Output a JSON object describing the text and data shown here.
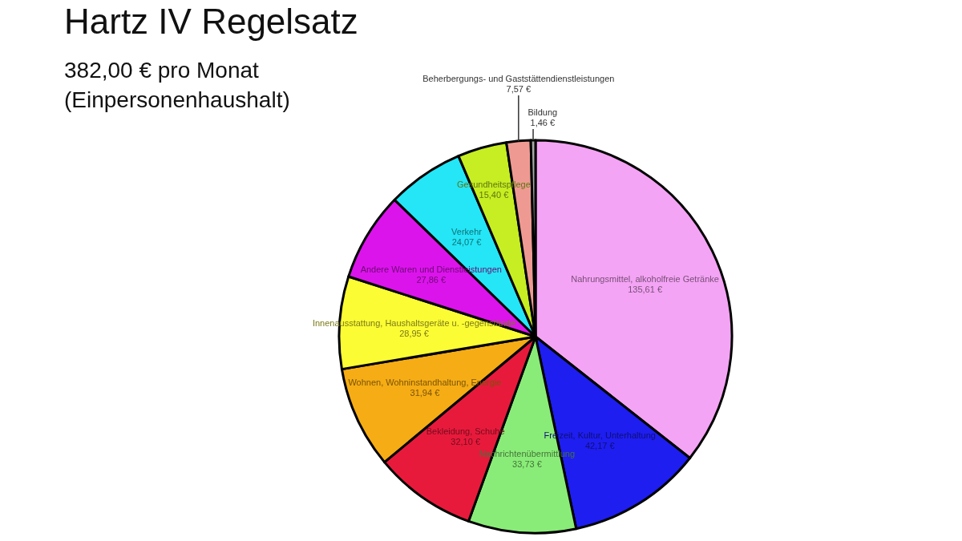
{
  "chart_data": {
    "type": "pie",
    "title": "Hartz IV Regelsatz",
    "subtitle": "382,00 € pro Monat\n(Einpersonenhaushalt)",
    "categories": [
      "Nahrungsmittel, alkoholfreie Getränke",
      "Freizeit, Kultur, Unterhaltung",
      "Nachrichtenübermittlung",
      "Bekleidung, Schuhe",
      "Wohnen, Wohninstandhaltung, Energie",
      "Innenausstattung, Haushaltsgeräte u. -gegenstände",
      "Andere Waren und Dienstleistungen",
      "Verkehr",
      "Gesundheitspflege",
      "Beherbergungs- und Gaststättendienstleistungen",
      "Bildung"
    ],
    "values": [
      135.61,
      42.17,
      33.73,
      32.1,
      31.94,
      28.95,
      27.86,
      24.07,
      15.4,
      7.57,
      1.46
    ],
    "value_labels": [
      "135,61 €",
      "42,17 €",
      "33,73 €",
      "32,10 €",
      "31,94 €",
      "28,95 €",
      "27,86 €",
      "24,07 €",
      "15,40 €",
      "7,57 €",
      "1,46 €"
    ],
    "colors": [
      "#f4a4f4",
      "#1e1ef0",
      "#8aec78",
      "#e81a3c",
      "#f6ac14",
      "#fcfc34",
      "#dc14ec",
      "#24e6f6",
      "#c6ee22",
      "#ee9a92",
      "#a8a8a8"
    ]
  }
}
